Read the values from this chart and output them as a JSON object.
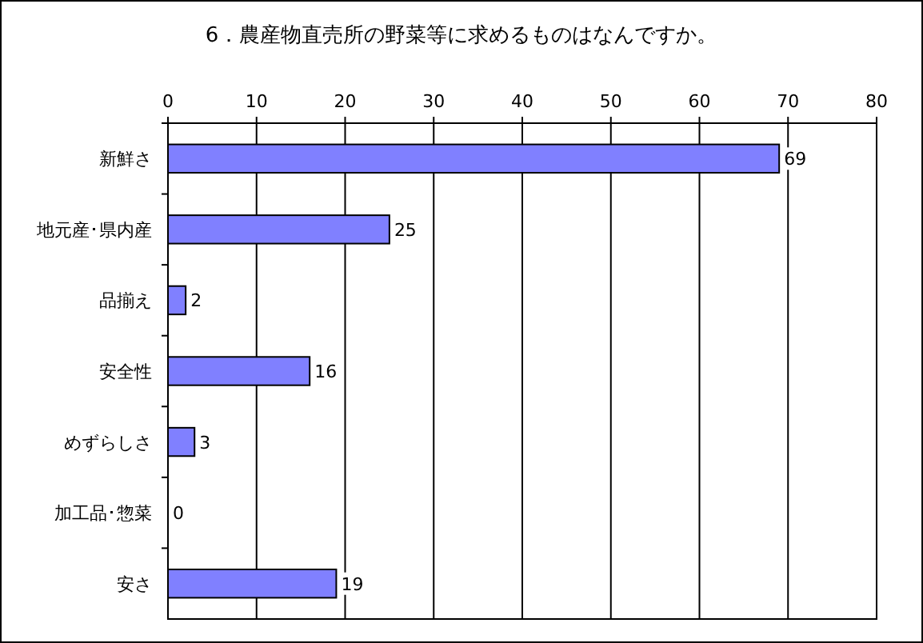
{
  "chart_data": {
    "type": "bar",
    "orientation": "horizontal",
    "title": "6．農産物直売所の野菜等に求めるものはなんですか。",
    "categories": [
      "新鮮さ",
      "地元産･県内産",
      "品揃え",
      "安全性",
      "めずらしさ",
      "加工品･惣菜",
      "安さ"
    ],
    "values": [
      69,
      25,
      2,
      16,
      3,
      0,
      19
    ],
    "color": "#8080ff",
    "xlim": [
      0,
      80
    ],
    "xticks": [
      0,
      10,
      20,
      30,
      40,
      50,
      60,
      70,
      80
    ],
    "grid": "x",
    "data_labels": true
  }
}
